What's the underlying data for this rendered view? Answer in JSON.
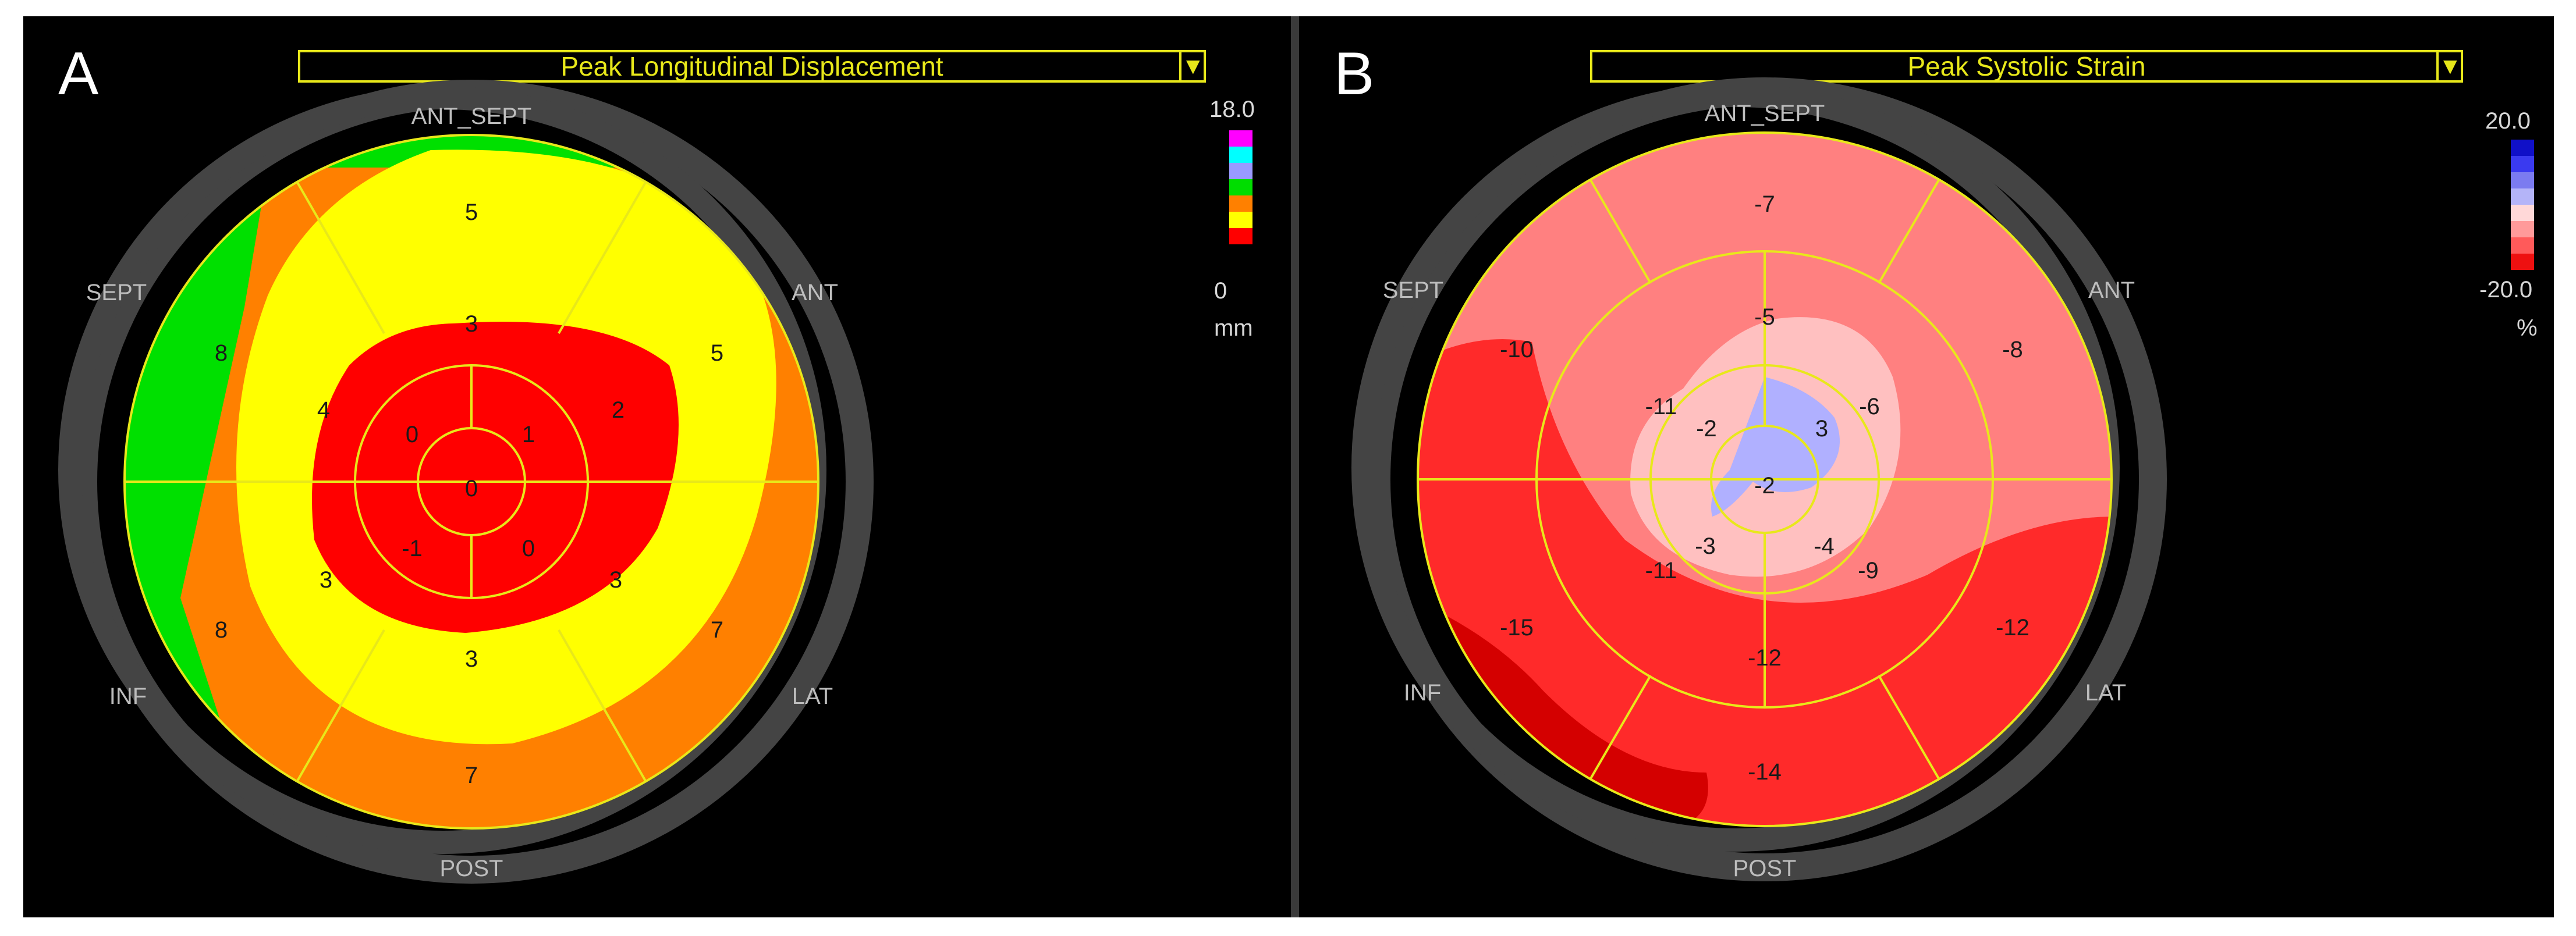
{
  "panel_a": {
    "letter": "A",
    "dropdown_label": "Peak Longitudinal Displacement",
    "dropdown_button": "▼",
    "labels": {
      "ant_sept": "ANT_SEPT",
      "ant": "ANT",
      "lat": "LAT",
      "post": "POST",
      "inf": "INF",
      "sept": "SEPT"
    },
    "scale": {
      "max": "18.0",
      "min": "0",
      "unit": "mm",
      "colors": [
        "#ff00ff",
        "#00ffff",
        "#9999ff",
        "#00dd00",
        "#ff8000",
        "#ffff00",
        "#ff0000"
      ]
    },
    "values": {
      "v5": "5",
      "v5b": "5",
      "v7": "7",
      "v7b": "7",
      "v8": "8",
      "v8b": "8",
      "v3a": "3",
      "v2": "2",
      "v3b": "3",
      "v3c": "3",
      "v3d": "3",
      "v4": "4",
      "v0a": "0",
      "v1": "1",
      "v0b": "0",
      "vm1": "-1",
      "v0c": "0"
    }
  },
  "panel_b": {
    "letter": "B",
    "dropdown_label": "Peak Systolic Strain",
    "dropdown_button": "▼",
    "labels": {
      "ant_sept": "ANT_SEPT",
      "ant": "ANT",
      "lat": "LAT",
      "post": "POST",
      "inf": "INF",
      "sept": "SEPT"
    },
    "scale": {
      "max": "20.0",
      "min": "-20.0",
      "unit": "%",
      "colors": [
        "#1010c8",
        "#3a3af0",
        "#7b7bf0",
        "#b4b4f8",
        "#ffd8d8",
        "#ff9a9a",
        "#ff5a5a",
        "#ee1010"
      ]
    },
    "values": {
      "b1": "-7",
      "b2": "-8",
      "b3": "-12",
      "b4": "-14",
      "b5": "-15",
      "b6": "-10",
      "b7": "-5",
      "b8": "-6",
      "b9": "-9",
      "b10": "-12",
      "b11": "-11",
      "b12": "-11",
      "b13": "-2",
      "b14": "3",
      "b15": "-4",
      "b16": "-3",
      "b17": "-2"
    }
  }
}
